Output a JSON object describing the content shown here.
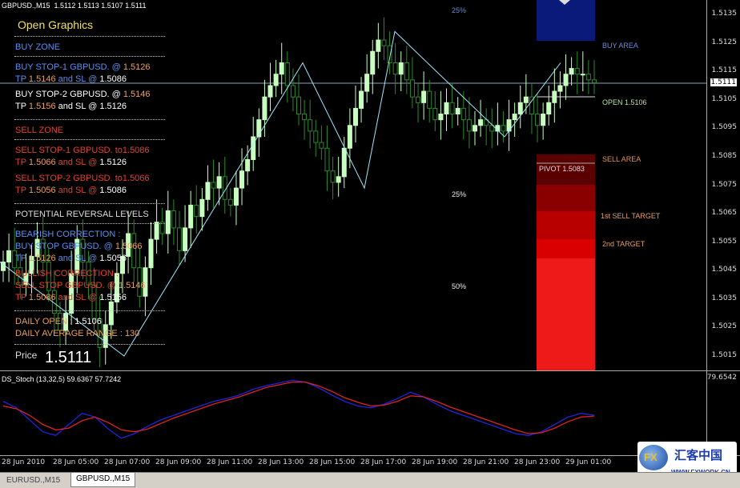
{
  "header": {
    "symbol_title": "GBPUSD.,M15",
    "ohlc": "1.5112 1.5113 1.5107 1.5111",
    "fib_top": "25%",
    "fib_mid": "25%",
    "fib_50": "50%"
  },
  "info": {
    "title": "Open Graphics",
    "buy_zone": "BUY ZONE",
    "buy_stop1_a": "BUY STOP-1  GBPUSD.  @ ",
    "buy_stop1_price": "1.5126",
    "buy_stop1_tp_a": "TP ",
    "buy_stop1_tp": "1.5146",
    "buy_stop1_sl_a": " and SL @ ",
    "buy_stop1_sl": "1.5086",
    "buy_stop2_a": "BUY STOP-2  GBPUSD.  @ ",
    "buy_stop2_price": "1.5146",
    "buy_stop2_tp_a": "TP ",
    "buy_stop2_tp": "1.5156",
    "buy_stop2_sl_a": " and SL @ ",
    "buy_stop2_sl": "1.5126",
    "sell_zone": "SELL ZONE",
    "sell_stop1_a": "SELL STOP-1  GBPUSD.  to",
    "sell_stop1_price": "1.5086",
    "sell_stop1_tp_a": "TP ",
    "sell_stop1_tp": "1.5066",
    "sell_stop1_sl_a": " and SL @ ",
    "sell_stop1_sl": "1.5126",
    "sell_stop2_a": "SELL STOP-2  GBPUSD.  to",
    "sell_stop2_price": "1.5066",
    "sell_stop2_tp_a": "TP ",
    "sell_stop2_tp": "1.5056",
    "sell_stop2_sl_a": " and SL @ ",
    "sell_stop2_sl": "1.5086",
    "reversal": "POTENTIAL REVERSAL LEVELS",
    "bearish": "BEARISH CORRECTION :",
    "bear_buy": "BUY STOP GBPUSD.  @ ",
    "bear_buy_price": "1.5066",
    "bear_tp_a": "TP ",
    "bear_tp": "1.5126",
    "bear_sl_a": " and SL @ ",
    "bear_sl": "1.5056",
    "bullish": "BULLISH CORRECTION :",
    "bull_sell": "SELL STOP GBPUSD.  @ ",
    "bull_sell_price": "1.5146",
    "bull_tp_a": "TP ",
    "bull_tp": "1.5086",
    "bull_sl_a": " and SL @ ",
    "bull_sl": "1.5156",
    "daily_open_a": "DAILY OPEN : ",
    "daily_open": "1.5106",
    "daily_range_a": "DAILY AVERAGE RANGE : ",
    "daily_range": "130",
    "price_label": "Price",
    "price_value": "1.5111"
  },
  "zones": {
    "buy_area": "BUY AREA",
    "open_label": "OPEN 1.5106",
    "sell_area": "SELL AREA",
    "pivot": "PIVOT 1.5083",
    "first_sell": "1st SELL TARGET",
    "second_target": "2nd TARGET"
  },
  "price_axis": [
    "1.5135",
    "1.5125",
    "1.5115",
    "1.5111",
    "1.5105",
    "1.5095",
    "1.5085",
    "1.5075",
    "1.5065",
    "1.5055",
    "1.5045",
    "1.5035",
    "1.5025",
    "1.5015"
  ],
  "stoch": {
    "title": "DS_Stoch (13,32,5) 59.6367 57.7242",
    "max_label": "79.6542"
  },
  "time_axis": [
    "28 Jun 2010",
    "28 Jun 05:00",
    "28 Jun 07:00",
    "28 Jun 09:00",
    "28 Jun 11:00",
    "28 Jun 13:00",
    "28 Jun 15:00",
    "28 Jun 17:00",
    "28 Jun 19:00",
    "28 Jun 21:00",
    "28 Jun 23:00",
    "29 Jun 01:00"
  ],
  "tabs": [
    "EURUSD.,M15",
    "GBPUSD.,M15"
  ],
  "watermark": {
    "brand": "汇客中国",
    "url": "WWW.FXWORK.CN"
  },
  "colors": {
    "bull": "#c8ffc0",
    "bear": "#2a8a2a",
    "zigzag": "#9fe8ff",
    "buy_text": "#5b8ef0",
    "sell_text": "#e8402a",
    "orange": "#e8a060",
    "white_text": "#ffffff",
    "stoch_blue": "#2222dd",
    "stoch_red": "#d22"
  },
  "chart_data": {
    "type": "candlestick",
    "symbol": "GBPUSD.",
    "timeframe": "M15",
    "ylim": [
      1.501,
      1.514
    ],
    "candles_close_approx": [
      1.5048,
      1.5052,
      1.5046,
      1.504,
      1.5044,
      1.505,
      1.5056,
      1.5048,
      1.5038,
      1.503,
      1.5024,
      1.503,
      1.5044,
      1.5056,
      1.5048,
      1.504,
      1.5028,
      1.5018,
      1.5026,
      1.5034,
      1.5044,
      1.505,
      1.5058,
      1.5046,
      1.5036,
      1.5046,
      1.5056,
      1.5062,
      1.5058,
      1.5066,
      1.506,
      1.5052,
      1.506,
      1.5068,
      1.5064,
      1.507,
      1.5076,
      1.5074,
      1.5078,
      1.507,
      1.5068,
      1.5074,
      1.508,
      1.5084,
      1.5092,
      1.5098,
      1.5106,
      1.511,
      1.5114,
      1.5118,
      1.511,
      1.5106,
      1.51,
      1.5098,
      1.5094,
      1.509,
      1.5088,
      1.508,
      1.5076,
      1.5078,
      1.5088,
      1.5096,
      1.5102,
      1.5108,
      1.5114,
      1.5122,
      1.5126,
      1.5124,
      1.5118,
      1.5114,
      1.5118,
      1.5112,
      1.5106,
      1.5104,
      1.5108,
      1.5102,
      1.5098,
      1.51,
      1.5104,
      1.51,
      1.5102,
      1.5098,
      1.5094,
      1.5096,
      1.5098,
      1.5096,
      1.5094,
      1.5096,
      1.5094,
      1.5098,
      1.51,
      1.5104,
      1.5106,
      1.51,
      1.5096,
      1.51,
      1.5104,
      1.5108,
      1.511,
      1.5114,
      1.5116,
      1.5114,
      1.5114,
      1.5112,
      1.5111
    ],
    "zigzag": [
      {
        "x": "28 Jun 2010 03:00",
        "y": 1.5048
      },
      {
        "x": "28 Jun 07:00",
        "y": 1.5015
      },
      {
        "x": "28 Jun 13:30",
        "y": 1.5118
      },
      {
        "x": "28 Jun 16:00",
        "y": 1.5074
      },
      {
        "x": "28 Jun 17:00",
        "y": 1.5129
      },
      {
        "x": "28 Jun 22:30",
        "y": 1.5092
      },
      {
        "x": "29 Jun 00:30",
        "y": 1.5118
      }
    ],
    "current_price": 1.5111,
    "stochastic": {
      "name": "DS_Stoch (13,32,5)",
      "main": 59.6367,
      "signal": 57.7242,
      "max": 79.6542
    }
  }
}
